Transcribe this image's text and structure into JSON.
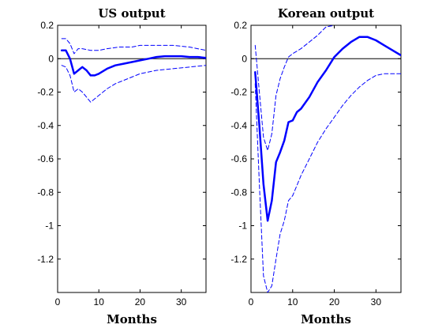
{
  "colors": {
    "series": "#0000ff",
    "axes": "#000000",
    "background": "#ffffff"
  },
  "chart_data": [
    {
      "type": "line",
      "title": "US output",
      "xlabel": "Months",
      "ylabel": "",
      "xlim": [
        0,
        36
      ],
      "ylim": [
        -1.4,
        0.2
      ],
      "xticks": [
        0,
        10,
        20,
        30
      ],
      "yticks": [
        0.2,
        0,
        -0.2,
        -0.4,
        -0.6,
        -0.8,
        -1,
        -1.2
      ],
      "xtick_labels": [
        "0",
        "10",
        "20",
        "30"
      ],
      "ytick_labels": [
        "0.2",
        "0",
        "-0.2",
        "-0.4",
        "-0.6",
        "-0.8",
        "-1",
        "-1.2"
      ],
      "zero_line": true,
      "grid": false,
      "series": [
        {
          "style": "solid",
          "x": [
            1,
            2,
            3,
            4,
            5,
            6,
            7,
            8,
            9,
            10,
            12,
            14,
            16,
            18,
            20,
            22,
            24,
            26,
            28,
            30,
            32,
            34,
            36
          ],
          "values": [
            0.05,
            0.05,
            0.0,
            -0.09,
            -0.07,
            -0.05,
            -0.07,
            -0.1,
            -0.1,
            -0.09,
            -0.06,
            -0.04,
            -0.03,
            -0.02,
            -0.01,
            0.0,
            0.01,
            0.015,
            0.015,
            0.015,
            0.01,
            0.01,
            0.005
          ]
        },
        {
          "style": "dashed",
          "x": [
            1,
            2,
            3,
            4,
            5,
            6,
            8,
            10,
            12,
            15,
            18,
            20,
            24,
            28,
            32,
            36
          ],
          "values": [
            0.12,
            0.12,
            0.09,
            0.03,
            0.06,
            0.06,
            0.05,
            0.05,
            0.06,
            0.07,
            0.07,
            0.08,
            0.08,
            0.08,
            0.07,
            0.05
          ]
        },
        {
          "style": "dashed",
          "x": [
            1,
            2,
            3,
            4,
            5,
            6,
            7,
            8,
            9,
            10,
            12,
            14,
            16,
            18,
            20,
            24,
            28,
            32,
            36
          ],
          "values": [
            -0.04,
            -0.05,
            -0.1,
            -0.2,
            -0.18,
            -0.2,
            -0.23,
            -0.26,
            -0.24,
            -0.22,
            -0.18,
            -0.15,
            -0.13,
            -0.11,
            -0.09,
            -0.07,
            -0.06,
            -0.05,
            -0.04
          ]
        }
      ]
    },
    {
      "type": "line",
      "title": "Korean output",
      "xlabel": "Months",
      "ylabel": "",
      "xlim": [
        0,
        36
      ],
      "ylim": [
        -1.4,
        0.2
      ],
      "xticks": [
        0,
        10,
        20,
        30
      ],
      "yticks": [
        0.2,
        0,
        -0.2,
        -0.4,
        -0.6,
        -0.8,
        -1,
        -1.2
      ],
      "xtick_labels": [
        "0",
        "10",
        "20",
        "30"
      ],
      "ytick_labels": [
        "0.2",
        "0",
        "-0.2",
        "-0.4",
        "-0.6",
        "-0.8",
        "-1",
        "-1.2"
      ],
      "zero_line": true,
      "grid": false,
      "series": [
        {
          "style": "solid",
          "x": [
            1,
            2,
            3,
            4,
            5,
            6,
            7,
            8,
            9,
            10,
            11,
            12,
            14,
            16,
            18,
            20,
            22,
            24,
            26,
            28,
            30,
            32,
            34,
            36
          ],
          "values": [
            -0.08,
            -0.4,
            -0.75,
            -0.97,
            -0.85,
            -0.62,
            -0.56,
            -0.49,
            -0.38,
            -0.37,
            -0.32,
            -0.3,
            -0.23,
            -0.14,
            -0.07,
            0.01,
            0.06,
            0.1,
            0.13,
            0.13,
            0.11,
            0.08,
            0.05,
            0.02
          ]
        },
        {
          "style": "dashed",
          "x": [
            1,
            2,
            3,
            4,
            5,
            6,
            7,
            8,
            9,
            10,
            12,
            14,
            16,
            18,
            20
          ],
          "values": [
            0.08,
            -0.2,
            -0.47,
            -0.55,
            -0.45,
            -0.22,
            -0.12,
            -0.05,
            0.01,
            0.03,
            0.06,
            0.1,
            0.14,
            0.19,
            0.2
          ]
        },
        {
          "style": "dashed",
          "x": [
            1,
            2,
            3,
            4,
            5,
            6,
            7,
            8,
            9,
            10,
            11,
            12,
            14,
            16,
            18,
            20,
            22,
            24,
            26,
            28,
            30,
            32,
            34,
            36
          ],
          "values": [
            -0.15,
            -0.75,
            -1.3,
            -1.4,
            -1.36,
            -1.2,
            -1.05,
            -0.97,
            -0.85,
            -0.82,
            -0.76,
            -0.7,
            -0.6,
            -0.5,
            -0.42,
            -0.35,
            -0.28,
            -0.22,
            -0.17,
            -0.13,
            -0.1,
            -0.09,
            -0.09,
            -0.09
          ]
        }
      ]
    }
  ]
}
